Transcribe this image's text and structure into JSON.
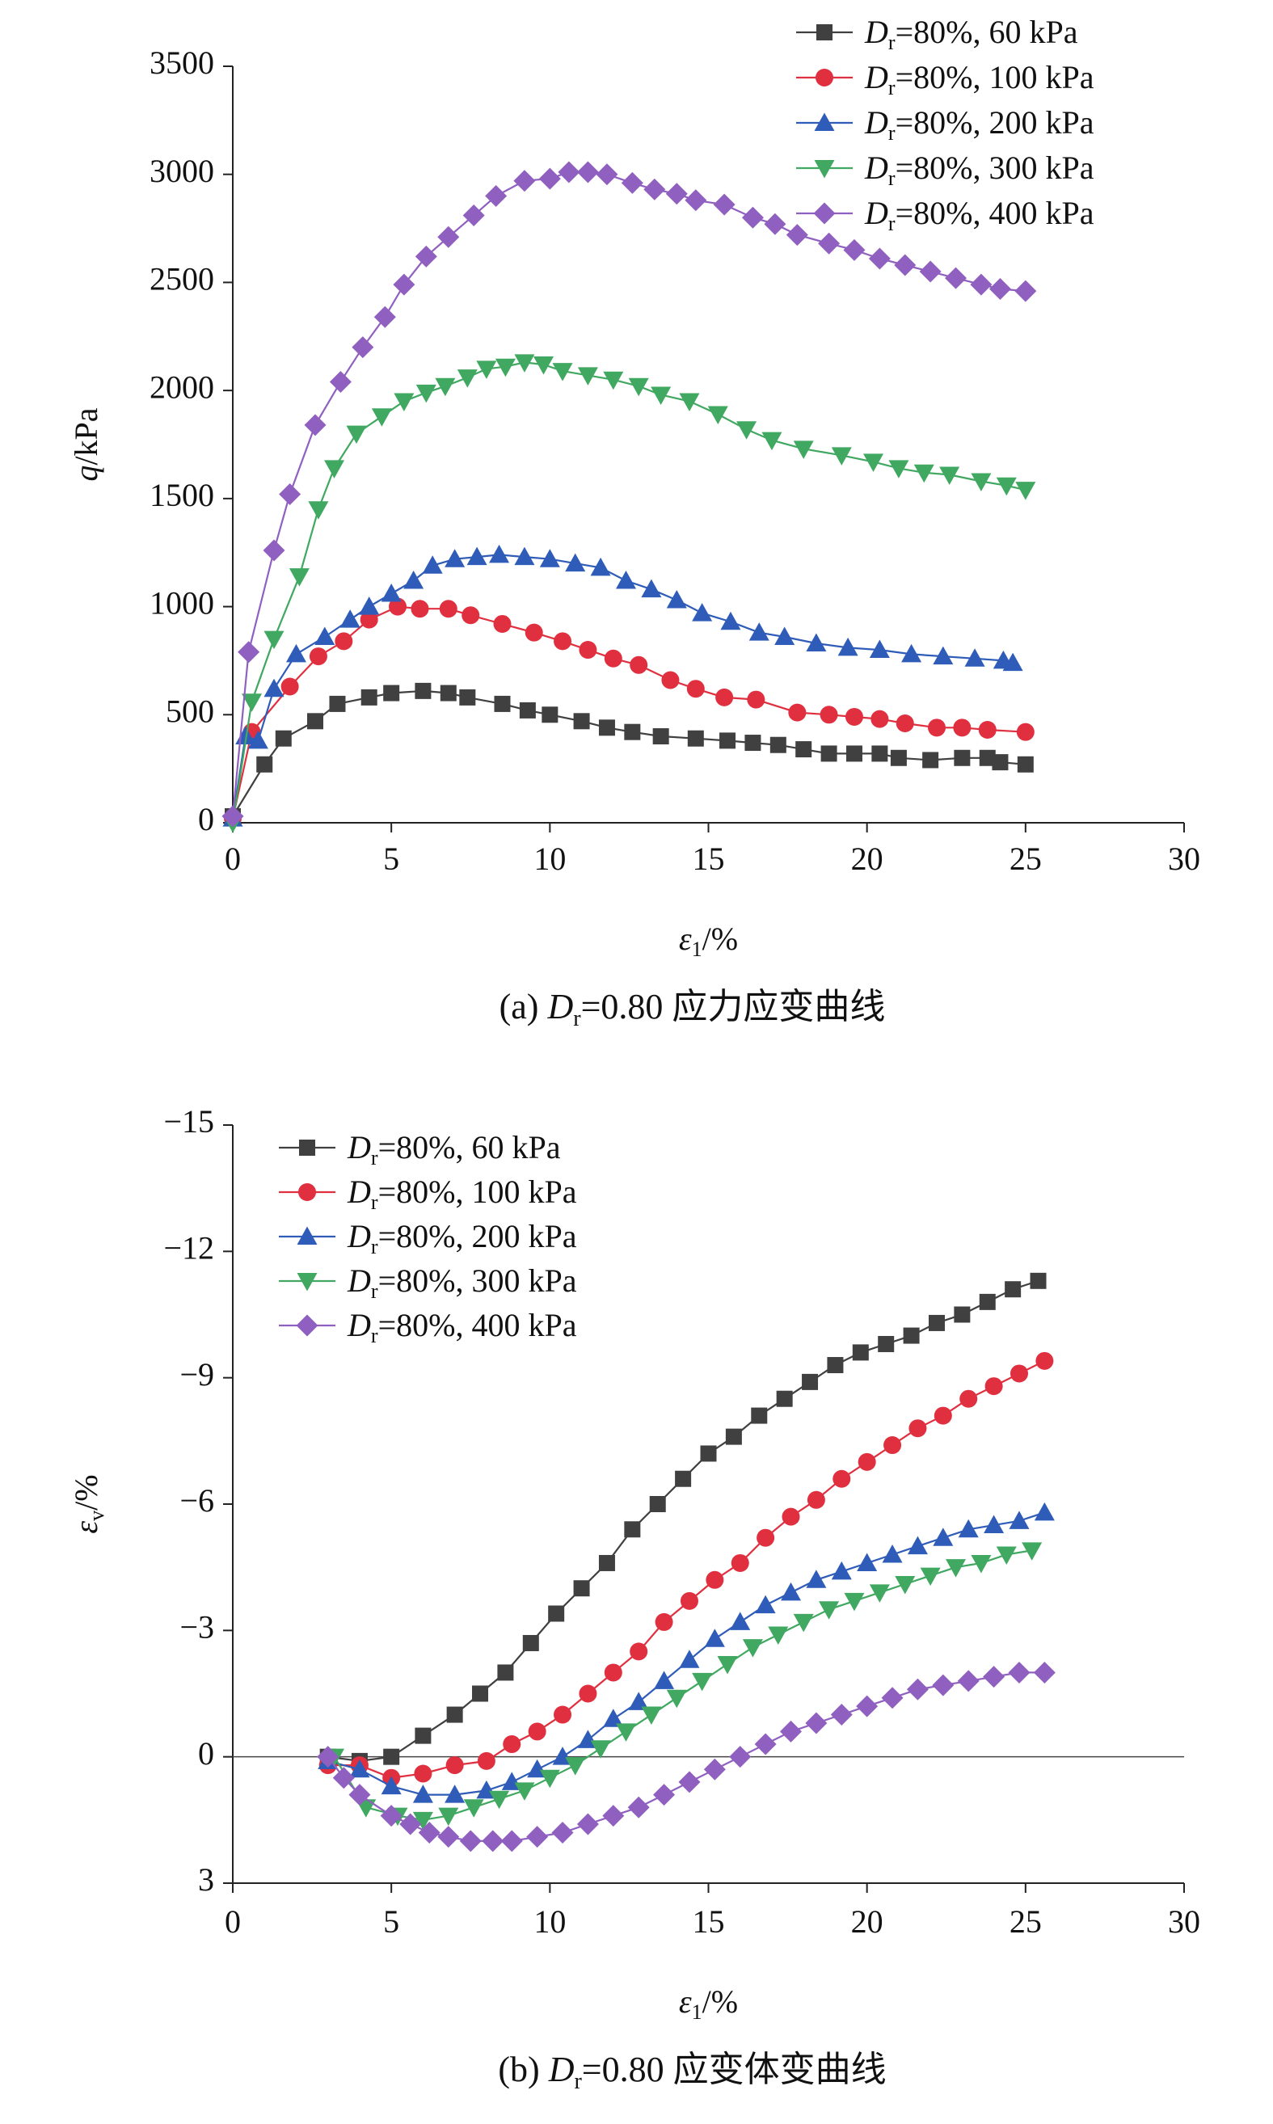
{
  "chart_data": [
    {
      "type": "line",
      "caption_prefix": "(a) ",
      "caption_D": "D",
      "caption_sub": "r",
      "caption_rest": "=0.80 应力应变曲线",
      "xlabel_sym": "ε",
      "xlabel_sub": "1",
      "xlabel_unit": "/%",
      "ylabel_sym": "q",
      "ylabel_unit": "/kPa",
      "xlim": [
        0,
        30
      ],
      "ylim": [
        0,
        3500
      ],
      "xticks": [
        "0",
        "5",
        "10",
        "15",
        "20",
        "25",
        "30"
      ],
      "yticks": [
        "0",
        "500",
        "1000",
        "1500",
        "2000",
        "2500",
        "3000",
        "3500"
      ],
      "legend_position": "top-right",
      "series": [
        {
          "name_D": "D",
          "name_sub": "r",
          "name_rest": "=80%, 60 kPa",
          "color": "#404040",
          "marker": "square",
          "x": [
            0,
            1,
            1.6,
            2.6,
            3.3,
            4.3,
            5,
            6,
            6.8,
            7.4,
            8.5,
            9.3,
            10,
            11,
            11.8,
            12.6,
            13.5,
            14.6,
            15.6,
            16.4,
            17.2,
            18,
            18.8,
            19.6,
            20.4,
            21,
            22,
            23,
            23.8,
            24.2,
            25
          ],
          "y": [
            30,
            270,
            390,
            470,
            550,
            580,
            600,
            610,
            600,
            580,
            550,
            520,
            500,
            470,
            440,
            420,
            400,
            390,
            380,
            370,
            360,
            340,
            320,
            320,
            320,
            300,
            290,
            300,
            300,
            280,
            270
          ]
        },
        {
          "name_D": "D",
          "name_sub": "r",
          "name_rest": "=80%, 100 kPa",
          "color": "#e03040",
          "marker": "circle",
          "x": [
            0,
            0.6,
            1.8,
            2.7,
            3.5,
            4.3,
            5.2,
            5.9,
            6.8,
            7.5,
            8.5,
            9.5,
            10.4,
            11.2,
            12,
            12.8,
            13.8,
            14.6,
            15.5,
            16.5,
            17.8,
            18.8,
            19.6,
            20.4,
            21.2,
            22.2,
            23,
            23.8,
            25
          ],
          "y": [
            20,
            420,
            630,
            770,
            840,
            940,
            1000,
            990,
            990,
            960,
            920,
            880,
            840,
            800,
            760,
            730,
            660,
            620,
            580,
            570,
            510,
            500,
            490,
            480,
            460,
            440,
            440,
            430,
            420
          ]
        },
        {
          "name_D": "D",
          "name_sub": "r",
          "name_rest": "=80%, 200 kPa",
          "color": "#2e5cb8",
          "marker": "triangle-up",
          "x": [
            0,
            0.4,
            0.8,
            1.3,
            2,
            2.9,
            3.7,
            4.3,
            5,
            5.7,
            6.3,
            7,
            7.7,
            8.4,
            9.2,
            10,
            10.8,
            11.6,
            12.4,
            13.2,
            14,
            14.8,
            15.7,
            16.6,
            17.4,
            18.4,
            19.4,
            20.4,
            21.4,
            22.4,
            23.4,
            24.3,
            24.6
          ],
          "y": [
            20,
            400,
            380,
            620,
            780,
            860,
            940,
            1000,
            1060,
            1120,
            1190,
            1220,
            1230,
            1240,
            1230,
            1220,
            1200,
            1180,
            1120,
            1080,
            1030,
            970,
            930,
            880,
            860,
            830,
            810,
            800,
            780,
            770,
            760,
            750,
            740
          ]
        },
        {
          "name_D": "D",
          "name_sub": "r",
          "name_rest": "=80%, 300 kPa",
          "color": "#40a860",
          "marker": "triangle-down",
          "x": [
            0,
            0.6,
            1.3,
            2.1,
            2.7,
            3.2,
            3.9,
            4.7,
            5.4,
            6.1,
            6.7,
            7.4,
            8,
            8.6,
            9.2,
            9.8,
            10.4,
            11.2,
            12,
            12.8,
            13.5,
            14.4,
            15.3,
            16.2,
            17,
            18,
            19.2,
            20.2,
            21,
            21.8,
            22.6,
            23.6,
            24.4,
            25
          ],
          "y": [
            0,
            560,
            850,
            1140,
            1450,
            1640,
            1800,
            1880,
            1950,
            1990,
            2020,
            2060,
            2100,
            2110,
            2130,
            2120,
            2090,
            2070,
            2050,
            2020,
            1980,
            1950,
            1890,
            1820,
            1770,
            1730,
            1700,
            1670,
            1640,
            1620,
            1610,
            1580,
            1560,
            1540
          ]
        },
        {
          "name_D": "D",
          "name_sub": "r",
          "name_rest": "=80%, 400 kPa",
          "color": "#9060c0",
          "marker": "diamond",
          "x": [
            0,
            0.5,
            1.3,
            1.8,
            2.6,
            3.4,
            4.1,
            4.8,
            5.4,
            6.1,
            6.8,
            7.6,
            8.3,
            9.2,
            10,
            10.6,
            11.2,
            11.8,
            12.6,
            13.3,
            14,
            14.6,
            15.5,
            16.4,
            17.1,
            17.8,
            18.8,
            19.6,
            20.4,
            21.2,
            22,
            22.8,
            23.6,
            24.2,
            25
          ],
          "y": [
            30,
            790,
            1260,
            1520,
            1840,
            2040,
            2200,
            2340,
            2490,
            2620,
            2710,
            2810,
            2900,
            2970,
            2980,
            3010,
            3010,
            3000,
            2960,
            2930,
            2910,
            2880,
            2860,
            2800,
            2770,
            2720,
            2680,
            2650,
            2610,
            2580,
            2550,
            2520,
            2490,
            2470,
            2460
          ]
        }
      ]
    },
    {
      "type": "line",
      "caption_prefix": "(b) ",
      "caption_D": "D",
      "caption_sub": "r",
      "caption_rest": "=0.80 应变体变曲线",
      "xlabel_sym": "ε",
      "xlabel_sub": "1",
      "xlabel_unit": "/%",
      "ylabel_sym": "ε",
      "ylabel_sub": "v",
      "ylabel_unit": "/%",
      "xlim": [
        0,
        30
      ],
      "ylim": [
        3,
        -15
      ],
      "y_inverted": true,
      "xticks": [
        "0",
        "5",
        "10",
        "15",
        "20",
        "25",
        "30"
      ],
      "yticks": [
        "3",
        "0",
        "−3",
        "−6",
        "−9",
        "−12",
        "−15"
      ],
      "legend_position": "top-left",
      "zero_line": true,
      "series": [
        {
          "name_D": "D",
          "name_sub": "r",
          "name_rest": "=80%, 60 kPa",
          "color": "#404040",
          "marker": "square",
          "x": [
            3.0,
            4.0,
            5.0,
            6.0,
            7.0,
            7.8,
            8.6,
            9.4,
            10.2,
            11.0,
            11.8,
            12.6,
            13.4,
            14.2,
            15.0,
            15.8,
            16.6,
            17.4,
            18.2,
            19.0,
            19.8,
            20.6,
            21.4,
            22.2,
            23.0,
            23.8,
            24.6,
            25.4
          ],
          "y": [
            0.0,
            0.1,
            0.0,
            -0.5,
            -1.0,
            -1.5,
            -2.0,
            -2.7,
            -3.4,
            -4.0,
            -4.6,
            -5.4,
            -6.0,
            -6.6,
            -7.2,
            -7.6,
            -8.1,
            -8.5,
            -8.9,
            -9.3,
            -9.6,
            -9.8,
            -10.0,
            -10.3,
            -10.5,
            -10.8,
            -11.1,
            -11.3
          ]
        },
        {
          "name_D": "D",
          "name_sub": "r",
          "name_rest": "=80%, 100 kPa",
          "color": "#e03040",
          "marker": "circle",
          "x": [
            3.0,
            4.0,
            5.0,
            6.0,
            7.0,
            8.0,
            8.8,
            9.6,
            10.4,
            11.2,
            12.0,
            12.8,
            13.6,
            14.4,
            15.2,
            16.0,
            16.8,
            17.6,
            18.4,
            19.2,
            20.0,
            20.8,
            21.6,
            22.4,
            23.2,
            24.0,
            24.8,
            25.6
          ],
          "y": [
            0.2,
            0.2,
            0.5,
            0.4,
            0.2,
            0.1,
            -0.3,
            -0.6,
            -1.0,
            -1.5,
            -2.0,
            -2.5,
            -3.2,
            -3.7,
            -4.2,
            -4.6,
            -5.2,
            -5.7,
            -6.1,
            -6.6,
            -7.0,
            -7.4,
            -7.8,
            -8.1,
            -8.5,
            -8.8,
            -9.1,
            -9.4
          ]
        },
        {
          "name_D": "D",
          "name_sub": "r",
          "name_rest": "=80%, 200 kPa",
          "color": "#2e5cb8",
          "marker": "triangle-up",
          "x": [
            3.0,
            4.0,
            5.0,
            6.0,
            7.0,
            8.0,
            8.8,
            9.6,
            10.4,
            11.2,
            12.0,
            12.8,
            13.6,
            14.4,
            15.2,
            16.0,
            16.8,
            17.6,
            18.4,
            19.2,
            20.0,
            20.8,
            21.6,
            22.4,
            23.2,
            24.0,
            24.8,
            25.6
          ],
          "y": [
            0.1,
            0.3,
            0.7,
            0.9,
            0.9,
            0.8,
            0.6,
            0.3,
            0.0,
            -0.4,
            -0.9,
            -1.3,
            -1.8,
            -2.3,
            -2.8,
            -3.2,
            -3.6,
            -3.9,
            -4.2,
            -4.4,
            -4.6,
            -4.8,
            -5.0,
            -5.2,
            -5.4,
            -5.5,
            -5.6,
            -5.8
          ]
        },
        {
          "name_D": "D",
          "name_sub": "r",
          "name_rest": "=80%, 300 kPa",
          "color": "#40a860",
          "marker": "triangle-down",
          "x": [
            3.2,
            4.2,
            5.2,
            6.0,
            6.8,
            7.6,
            8.4,
            9.2,
            10.0,
            10.8,
            11.6,
            12.4,
            13.2,
            14.0,
            14.8,
            15.6,
            16.4,
            17.2,
            18.0,
            18.8,
            19.6,
            20.4,
            21.2,
            22.0,
            22.8,
            23.6,
            24.4,
            25.2
          ],
          "y": [
            0.0,
            1.2,
            1.4,
            1.5,
            1.4,
            1.2,
            1.0,
            0.8,
            0.5,
            0.2,
            -0.2,
            -0.6,
            -1.0,
            -1.4,
            -1.8,
            -2.2,
            -2.6,
            -2.9,
            -3.2,
            -3.5,
            -3.7,
            -3.9,
            -4.1,
            -4.3,
            -4.5,
            -4.6,
            -4.8,
            -4.9
          ]
        },
        {
          "name_D": "D",
          "name_sub": "r",
          "name_rest": "=80%, 400 kPa",
          "color": "#9060c0",
          "marker": "diamond",
          "x": [
            3.0,
            3.5,
            4.0,
            5.0,
            5.6,
            6.2,
            6.8,
            7.5,
            8.2,
            8.8,
            9.6,
            10.4,
            11.2,
            12.0,
            12.8,
            13.6,
            14.4,
            15.2,
            16.0,
            16.8,
            17.6,
            18.4,
            19.2,
            20.0,
            20.8,
            21.6,
            22.4,
            23.2,
            24.0,
            24.8,
            25.6
          ],
          "y": [
            0.0,
            0.5,
            0.9,
            1.4,
            1.6,
            1.8,
            1.9,
            2.0,
            2.0,
            2.0,
            1.9,
            1.8,
            1.6,
            1.4,
            1.2,
            0.9,
            0.6,
            0.3,
            0.0,
            -0.3,
            -0.6,
            -0.8,
            -1.0,
            -1.2,
            -1.4,
            -1.6,
            -1.7,
            -1.8,
            -1.9,
            -2.0,
            -2.0
          ]
        }
      ]
    }
  ]
}
